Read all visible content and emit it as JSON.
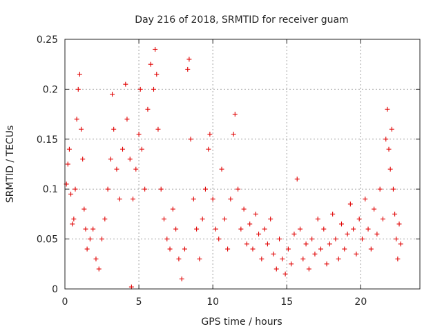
{
  "chart_data": {
    "type": "scatter",
    "title": "Day 216 of 2018, SRMTID for receiver guam",
    "xlabel": "GPS time / hours",
    "ylabel": "SRMTID / TECUs",
    "xlim": [
      0,
      24
    ],
    "ylim": [
      0,
      0.25
    ],
    "xticks": [
      0,
      5,
      10,
      15,
      20
    ],
    "xtick_labels": [
      "0",
      "5",
      "10",
      "15",
      "20"
    ],
    "yticks": [
      0,
      0.05,
      0.1,
      0.15,
      0.2,
      0.25
    ],
    "ytick_labels": [
      "0",
      "0.05",
      "0.1",
      "0.15",
      "0.2",
      "0.25"
    ],
    "grid": true,
    "marker": "+",
    "color": "#e00000",
    "series": [
      {
        "name": "SRMTID",
        "points": [
          [
            0.1,
            0.105
          ],
          [
            0.2,
            0.125
          ],
          [
            0.3,
            0.14
          ],
          [
            0.4,
            0.095
          ],
          [
            0.5,
            0.065
          ],
          [
            0.6,
            0.07
          ],
          [
            0.7,
            0.1
          ],
          [
            0.8,
            0.17
          ],
          [
            0.9,
            0.2
          ],
          [
            1.0,
            0.215
          ],
          [
            1.1,
            0.16
          ],
          [
            1.2,
            0.13
          ],
          [
            1.3,
            0.08
          ],
          [
            1.4,
            0.06
          ],
          [
            1.5,
            0.04
          ],
          [
            1.7,
            0.05
          ],
          [
            1.9,
            0.06
          ],
          [
            2.1,
            0.03
          ],
          [
            2.3,
            0.02
          ],
          [
            2.5,
            0.05
          ],
          [
            2.7,
            0.07
          ],
          [
            2.9,
            0.1
          ],
          [
            3.1,
            0.13
          ],
          [
            3.2,
            0.195
          ],
          [
            3.3,
            0.16
          ],
          [
            3.5,
            0.12
          ],
          [
            3.7,
            0.09
          ],
          [
            3.9,
            0.14
          ],
          [
            4.1,
            0.205
          ],
          [
            4.2,
            0.17
          ],
          [
            4.4,
            0.13
          ],
          [
            4.5,
            0.002
          ],
          [
            4.6,
            0.09
          ],
          [
            4.8,
            0.12
          ],
          [
            5.0,
            0.155
          ],
          [
            5.1,
            0.2
          ],
          [
            5.2,
            0.14
          ],
          [
            5.4,
            0.1
          ],
          [
            5.6,
            0.18
          ],
          [
            5.8,
            0.225
          ],
          [
            6.0,
            0.2
          ],
          [
            6.1,
            0.24
          ],
          [
            6.2,
            0.215
          ],
          [
            6.3,
            0.16
          ],
          [
            6.5,
            0.1
          ],
          [
            6.7,
            0.07
          ],
          [
            6.9,
            0.05
          ],
          [
            7.1,
            0.04
          ],
          [
            7.3,
            0.08
          ],
          [
            7.5,
            0.06
          ],
          [
            7.7,
            0.03
          ],
          [
            7.9,
            0.01
          ],
          [
            8.1,
            0.04
          ],
          [
            8.3,
            0.22
          ],
          [
            8.4,
            0.23
          ],
          [
            8.5,
            0.15
          ],
          [
            8.7,
            0.09
          ],
          [
            8.9,
            0.06
          ],
          [
            9.1,
            0.03
          ],
          [
            9.3,
            0.07
          ],
          [
            9.5,
            0.1
          ],
          [
            9.7,
            0.14
          ],
          [
            9.8,
            0.155
          ],
          [
            10.0,
            0.09
          ],
          [
            10.2,
            0.06
          ],
          [
            10.4,
            0.05
          ],
          [
            10.6,
            0.12
          ],
          [
            10.8,
            0.07
          ],
          [
            11.0,
            0.04
          ],
          [
            11.2,
            0.09
          ],
          [
            11.4,
            0.155
          ],
          [
            11.5,
            0.175
          ],
          [
            11.7,
            0.1
          ],
          [
            11.9,
            0.06
          ],
          [
            12.1,
            0.08
          ],
          [
            12.3,
            0.045
          ],
          [
            12.5,
            0.065
          ],
          [
            12.7,
            0.04
          ],
          [
            12.9,
            0.075
          ],
          [
            13.1,
            0.055
          ],
          [
            13.3,
            0.03
          ],
          [
            13.5,
            0.06
          ],
          [
            13.7,
            0.045
          ],
          [
            13.9,
            0.07
          ],
          [
            14.1,
            0.035
          ],
          [
            14.3,
            0.02
          ],
          [
            14.5,
            0.05
          ],
          [
            14.7,
            0.03
          ],
          [
            14.9,
            0.015
          ],
          [
            15.1,
            0.04
          ],
          [
            15.3,
            0.025
          ],
          [
            15.5,
            0.055
          ],
          [
            15.7,
            0.11
          ],
          [
            15.9,
            0.06
          ],
          [
            16.1,
            0.03
          ],
          [
            16.3,
            0.045
          ],
          [
            16.5,
            0.02
          ],
          [
            16.7,
            0.05
          ],
          [
            16.9,
            0.035
          ],
          [
            17.1,
            0.07
          ],
          [
            17.3,
            0.04
          ],
          [
            17.5,
            0.06
          ],
          [
            17.7,
            0.025
          ],
          [
            17.9,
            0.045
          ],
          [
            18.1,
            0.075
          ],
          [
            18.3,
            0.05
          ],
          [
            18.5,
            0.03
          ],
          [
            18.7,
            0.065
          ],
          [
            18.9,
            0.04
          ],
          [
            19.1,
            0.055
          ],
          [
            19.3,
            0.085
          ],
          [
            19.5,
            0.06
          ],
          [
            19.7,
            0.035
          ],
          [
            19.9,
            0.07
          ],
          [
            20.1,
            0.05
          ],
          [
            20.3,
            0.09
          ],
          [
            20.5,
            0.06
          ],
          [
            20.7,
            0.04
          ],
          [
            20.9,
            0.08
          ],
          [
            21.1,
            0.055
          ],
          [
            21.3,
            0.1
          ],
          [
            21.5,
            0.07
          ],
          [
            21.7,
            0.15
          ],
          [
            21.8,
            0.18
          ],
          [
            21.9,
            0.14
          ],
          [
            22.0,
            0.12
          ],
          [
            22.1,
            0.16
          ],
          [
            22.2,
            0.1
          ],
          [
            22.3,
            0.075
          ],
          [
            22.4,
            0.05
          ],
          [
            22.5,
            0.03
          ],
          [
            22.6,
            0.065
          ],
          [
            22.7,
            0.045
          ]
        ]
      }
    ]
  }
}
